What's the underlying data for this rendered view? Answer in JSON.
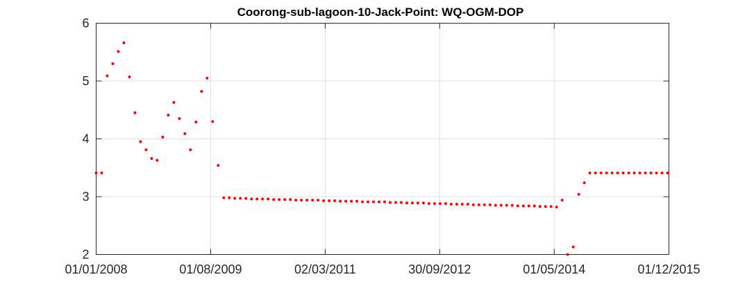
{
  "chart_data": {
    "type": "scatter",
    "title": "Coorong-sub-lagoon-10-Jack-Point: WQ-OGM-DOP",
    "xlabel": "",
    "ylabel": "",
    "x_axis_type": "date",
    "xlim": [
      "2008-01-01",
      "2015-12-01"
    ],
    "ylim": [
      2,
      6
    ],
    "x_ticks": [
      "2008-01-01",
      "2009-08-01",
      "2011-03-02",
      "2012-09-30",
      "2014-05-01",
      "2015-12-01"
    ],
    "x_tick_labels": [
      "01/01/2008",
      "01/08/2009",
      "02/03/2011",
      "30/09/2012",
      "01/05/2014",
      "01/12/2015"
    ],
    "y_ticks": [
      2,
      3,
      4,
      5,
      6
    ],
    "y_tick_labels": [
      "2",
      "3",
      "4",
      "5",
      "6"
    ],
    "grid": true,
    "marker_color": "#ff0000",
    "series": [
      {
        "x": [
          "2008-01-01",
          "2008-01-29",
          "2008-02-26",
          "2008-03-25",
          "2008-04-22",
          "2008-05-20",
          "2008-06-17",
          "2008-07-15",
          "2008-08-12",
          "2008-09-09",
          "2008-10-07",
          "2008-11-04",
          "2008-12-02",
          "2008-12-30",
          "2009-01-27",
          "2009-02-24",
          "2009-03-24",
          "2009-04-21",
          "2009-05-19",
          "2009-06-16",
          "2009-07-14",
          "2009-08-11",
          "2009-09-08",
          "2009-10-06",
          "2009-11-03",
          "2009-12-01",
          "2009-12-29",
          "2010-01-26",
          "2010-02-23",
          "2010-03-23",
          "2010-04-20",
          "2010-05-18",
          "2010-06-15",
          "2010-07-13",
          "2010-08-10",
          "2010-09-07",
          "2010-10-05",
          "2010-11-02",
          "2010-11-30",
          "2010-12-28",
          "2011-01-25",
          "2011-02-22",
          "2011-03-22",
          "2011-04-19",
          "2011-05-17",
          "2011-06-14",
          "2011-07-12",
          "2011-08-09",
          "2011-09-06",
          "2011-10-04",
          "2011-11-01",
          "2011-11-29",
          "2011-12-27",
          "2012-01-24",
          "2012-02-21",
          "2012-03-20",
          "2012-04-17",
          "2012-05-15",
          "2012-06-12",
          "2012-07-10",
          "2012-08-07",
          "2012-09-04",
          "2012-10-02",
          "2012-10-30",
          "2012-11-27",
          "2012-12-25",
          "2013-01-22",
          "2013-02-19",
          "2013-03-19",
          "2013-04-16",
          "2013-05-14",
          "2013-06-11",
          "2013-07-09",
          "2013-08-06",
          "2013-09-03",
          "2013-10-01",
          "2013-10-29",
          "2013-11-26",
          "2013-12-24",
          "2014-01-21",
          "2014-02-18",
          "2014-03-18",
          "2014-04-15",
          "2014-05-13",
          "2014-06-10",
          "2014-07-08",
          "2014-08-05",
          "2014-09-02",
          "2014-09-30",
          "2014-10-28",
          "2014-11-25",
          "2014-12-23",
          "2015-01-20",
          "2015-02-17",
          "2015-03-17",
          "2015-04-14",
          "2015-05-12",
          "2015-06-09",
          "2015-07-07",
          "2015-08-04",
          "2015-09-01",
          "2015-09-29",
          "2015-10-27",
          "2015-11-24"
        ],
        "y": [
          3.41,
          3.41,
          5.09,
          5.3,
          5.51,
          5.66,
          5.07,
          4.45,
          3.95,
          3.81,
          3.66,
          3.63,
          4.03,
          4.41,
          4.63,
          4.35,
          4.09,
          3.81,
          4.29,
          4.82,
          5.05,
          4.3,
          3.54,
          2.98,
          2.98,
          2.97,
          2.97,
          2.97,
          2.96,
          2.96,
          2.96,
          2.96,
          2.95,
          2.95,
          2.95,
          2.95,
          2.94,
          2.94,
          2.94,
          2.94,
          2.94,
          2.93,
          2.93,
          2.93,
          2.92,
          2.92,
          2.92,
          2.92,
          2.91,
          2.91,
          2.91,
          2.91,
          2.91,
          2.9,
          2.9,
          2.9,
          2.89,
          2.89,
          2.89,
          2.89,
          2.88,
          2.88,
          2.88,
          2.88,
          2.87,
          2.87,
          2.87,
          2.87,
          2.86,
          2.86,
          2.86,
          2.86,
          2.85,
          2.85,
          2.85,
          2.85,
          2.84,
          2.84,
          2.84,
          2.84,
          2.83,
          2.83,
          2.83,
          2.82,
          2.94,
          2.0,
          2.13,
          3.04,
          3.24,
          3.41,
          3.41,
          3.41,
          3.41,
          3.41,
          3.41,
          3.41,
          3.41,
          3.41,
          3.41,
          3.41,
          3.41,
          3.41,
          3.41,
          3.41
        ]
      }
    ]
  }
}
